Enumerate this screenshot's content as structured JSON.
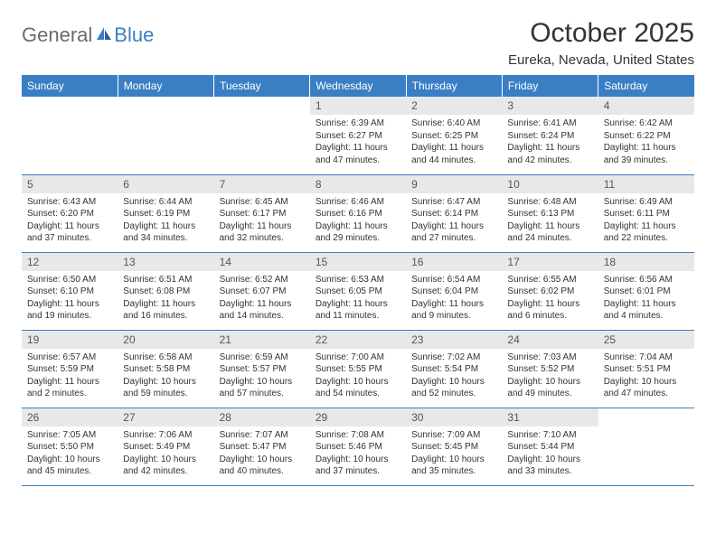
{
  "branding": {
    "logo_part1": "General",
    "logo_part2": "Blue"
  },
  "header": {
    "month_title": "October 2025",
    "location": "Eureka, Nevada, United States"
  },
  "colors": {
    "header_bg": "#3a7fc4",
    "header_text": "#ffffff",
    "daynum_bg": "#e8e8e8",
    "row_border": "#3a7fc4",
    "body_text": "#333333",
    "logo_gray": "#6b6b6b",
    "logo_blue": "#3a7fc4"
  },
  "weekdays": [
    "Sunday",
    "Monday",
    "Tuesday",
    "Wednesday",
    "Thursday",
    "Friday",
    "Saturday"
  ],
  "weeks": [
    [
      {
        "day": "",
        "sunrise": "",
        "sunset": "",
        "daylight": ""
      },
      {
        "day": "",
        "sunrise": "",
        "sunset": "",
        "daylight": ""
      },
      {
        "day": "",
        "sunrise": "",
        "sunset": "",
        "daylight": ""
      },
      {
        "day": "1",
        "sunrise": "Sunrise: 6:39 AM",
        "sunset": "Sunset: 6:27 PM",
        "daylight": "Daylight: 11 hours and 47 minutes."
      },
      {
        "day": "2",
        "sunrise": "Sunrise: 6:40 AM",
        "sunset": "Sunset: 6:25 PM",
        "daylight": "Daylight: 11 hours and 44 minutes."
      },
      {
        "day": "3",
        "sunrise": "Sunrise: 6:41 AM",
        "sunset": "Sunset: 6:24 PM",
        "daylight": "Daylight: 11 hours and 42 minutes."
      },
      {
        "day": "4",
        "sunrise": "Sunrise: 6:42 AM",
        "sunset": "Sunset: 6:22 PM",
        "daylight": "Daylight: 11 hours and 39 minutes."
      }
    ],
    [
      {
        "day": "5",
        "sunrise": "Sunrise: 6:43 AM",
        "sunset": "Sunset: 6:20 PM",
        "daylight": "Daylight: 11 hours and 37 minutes."
      },
      {
        "day": "6",
        "sunrise": "Sunrise: 6:44 AM",
        "sunset": "Sunset: 6:19 PM",
        "daylight": "Daylight: 11 hours and 34 minutes."
      },
      {
        "day": "7",
        "sunrise": "Sunrise: 6:45 AM",
        "sunset": "Sunset: 6:17 PM",
        "daylight": "Daylight: 11 hours and 32 minutes."
      },
      {
        "day": "8",
        "sunrise": "Sunrise: 6:46 AM",
        "sunset": "Sunset: 6:16 PM",
        "daylight": "Daylight: 11 hours and 29 minutes."
      },
      {
        "day": "9",
        "sunrise": "Sunrise: 6:47 AM",
        "sunset": "Sunset: 6:14 PM",
        "daylight": "Daylight: 11 hours and 27 minutes."
      },
      {
        "day": "10",
        "sunrise": "Sunrise: 6:48 AM",
        "sunset": "Sunset: 6:13 PM",
        "daylight": "Daylight: 11 hours and 24 minutes."
      },
      {
        "day": "11",
        "sunrise": "Sunrise: 6:49 AM",
        "sunset": "Sunset: 6:11 PM",
        "daylight": "Daylight: 11 hours and 22 minutes."
      }
    ],
    [
      {
        "day": "12",
        "sunrise": "Sunrise: 6:50 AM",
        "sunset": "Sunset: 6:10 PM",
        "daylight": "Daylight: 11 hours and 19 minutes."
      },
      {
        "day": "13",
        "sunrise": "Sunrise: 6:51 AM",
        "sunset": "Sunset: 6:08 PM",
        "daylight": "Daylight: 11 hours and 16 minutes."
      },
      {
        "day": "14",
        "sunrise": "Sunrise: 6:52 AM",
        "sunset": "Sunset: 6:07 PM",
        "daylight": "Daylight: 11 hours and 14 minutes."
      },
      {
        "day": "15",
        "sunrise": "Sunrise: 6:53 AM",
        "sunset": "Sunset: 6:05 PM",
        "daylight": "Daylight: 11 hours and 11 minutes."
      },
      {
        "day": "16",
        "sunrise": "Sunrise: 6:54 AM",
        "sunset": "Sunset: 6:04 PM",
        "daylight": "Daylight: 11 hours and 9 minutes."
      },
      {
        "day": "17",
        "sunrise": "Sunrise: 6:55 AM",
        "sunset": "Sunset: 6:02 PM",
        "daylight": "Daylight: 11 hours and 6 minutes."
      },
      {
        "day": "18",
        "sunrise": "Sunrise: 6:56 AM",
        "sunset": "Sunset: 6:01 PM",
        "daylight": "Daylight: 11 hours and 4 minutes."
      }
    ],
    [
      {
        "day": "19",
        "sunrise": "Sunrise: 6:57 AM",
        "sunset": "Sunset: 5:59 PM",
        "daylight": "Daylight: 11 hours and 2 minutes."
      },
      {
        "day": "20",
        "sunrise": "Sunrise: 6:58 AM",
        "sunset": "Sunset: 5:58 PM",
        "daylight": "Daylight: 10 hours and 59 minutes."
      },
      {
        "day": "21",
        "sunrise": "Sunrise: 6:59 AM",
        "sunset": "Sunset: 5:57 PM",
        "daylight": "Daylight: 10 hours and 57 minutes."
      },
      {
        "day": "22",
        "sunrise": "Sunrise: 7:00 AM",
        "sunset": "Sunset: 5:55 PM",
        "daylight": "Daylight: 10 hours and 54 minutes."
      },
      {
        "day": "23",
        "sunrise": "Sunrise: 7:02 AM",
        "sunset": "Sunset: 5:54 PM",
        "daylight": "Daylight: 10 hours and 52 minutes."
      },
      {
        "day": "24",
        "sunrise": "Sunrise: 7:03 AM",
        "sunset": "Sunset: 5:52 PM",
        "daylight": "Daylight: 10 hours and 49 minutes."
      },
      {
        "day": "25",
        "sunrise": "Sunrise: 7:04 AM",
        "sunset": "Sunset: 5:51 PM",
        "daylight": "Daylight: 10 hours and 47 minutes."
      }
    ],
    [
      {
        "day": "26",
        "sunrise": "Sunrise: 7:05 AM",
        "sunset": "Sunset: 5:50 PM",
        "daylight": "Daylight: 10 hours and 45 minutes."
      },
      {
        "day": "27",
        "sunrise": "Sunrise: 7:06 AM",
        "sunset": "Sunset: 5:49 PM",
        "daylight": "Daylight: 10 hours and 42 minutes."
      },
      {
        "day": "28",
        "sunrise": "Sunrise: 7:07 AM",
        "sunset": "Sunset: 5:47 PM",
        "daylight": "Daylight: 10 hours and 40 minutes."
      },
      {
        "day": "29",
        "sunrise": "Sunrise: 7:08 AM",
        "sunset": "Sunset: 5:46 PM",
        "daylight": "Daylight: 10 hours and 37 minutes."
      },
      {
        "day": "30",
        "sunrise": "Sunrise: 7:09 AM",
        "sunset": "Sunset: 5:45 PM",
        "daylight": "Daylight: 10 hours and 35 minutes."
      },
      {
        "day": "31",
        "sunrise": "Sunrise: 7:10 AM",
        "sunset": "Sunset: 5:44 PM",
        "daylight": "Daylight: 10 hours and 33 minutes."
      },
      {
        "day": "",
        "sunrise": "",
        "sunset": "",
        "daylight": ""
      }
    ]
  ]
}
